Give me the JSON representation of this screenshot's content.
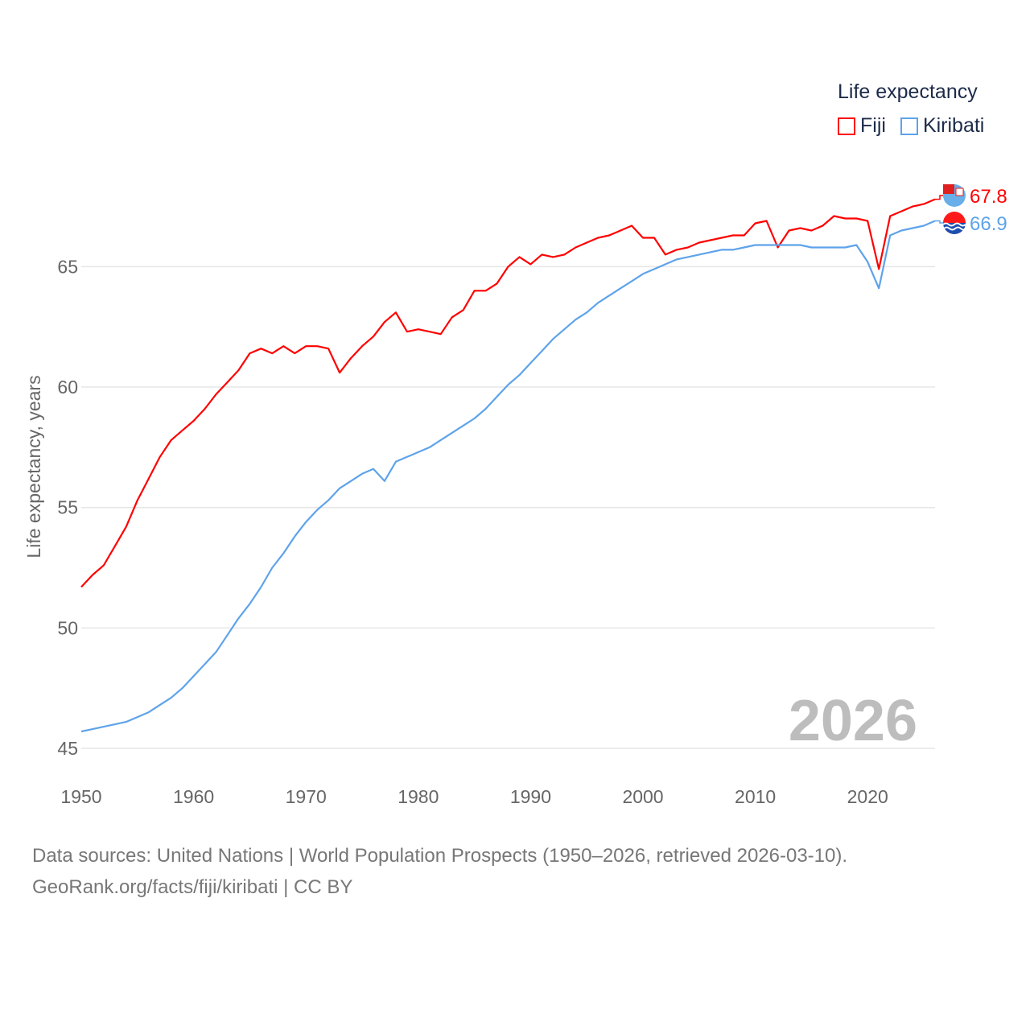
{
  "chart_data": {
    "type": "line",
    "title": "",
    "xlabel": "",
    "ylabel": "Life expectancy, years",
    "xlim": [
      1950,
      2026
    ],
    "ylim": [
      45,
      68.5
    ],
    "grid": true,
    "x_ticks": [
      "1950",
      "1960",
      "1970",
      "1980",
      "1990",
      "2000",
      "2010",
      "2020"
    ],
    "y_ticks": [
      "45",
      "50",
      "55",
      "60",
      "65"
    ],
    "legend": {
      "title": "Life expectancy",
      "placement": "top-right"
    },
    "year_label": "2026",
    "x": [
      1950,
      1951,
      1952,
      1953,
      1954,
      1955,
      1956,
      1957,
      1958,
      1959,
      1960,
      1961,
      1962,
      1963,
      1964,
      1965,
      1966,
      1967,
      1968,
      1969,
      1970,
      1971,
      1972,
      1973,
      1974,
      1975,
      1976,
      1977,
      1978,
      1979,
      1980,
      1981,
      1982,
      1983,
      1984,
      1985,
      1986,
      1987,
      1988,
      1989,
      1990,
      1991,
      1992,
      1993,
      1994,
      1995,
      1996,
      1997,
      1998,
      1999,
      2000,
      2001,
      2002,
      2003,
      2004,
      2005,
      2006,
      2007,
      2008,
      2009,
      2010,
      2011,
      2012,
      2013,
      2014,
      2015,
      2016,
      2017,
      2018,
      2019,
      2020,
      2021,
      2022,
      2023,
      2024,
      2025,
      2026
    ],
    "series": [
      {
        "name": "Fiji",
        "color": "#ff0000",
        "end_label": "67.8",
        "values": [
          51.7,
          52.2,
          52.6,
          53.4,
          54.2,
          55.3,
          56.2,
          57.1,
          57.8,
          58.2,
          58.6,
          59.1,
          59.7,
          60.2,
          60.7,
          61.4,
          61.6,
          61.4,
          61.7,
          61.4,
          61.7,
          61.7,
          61.6,
          60.6,
          61.2,
          61.7,
          62.1,
          62.7,
          63.1,
          62.3,
          62.4,
          62.3,
          62.2,
          62.9,
          63.2,
          64.0,
          64.0,
          64.3,
          65.0,
          65.4,
          65.1,
          65.5,
          65.4,
          65.5,
          65.8,
          66.0,
          66.2,
          66.3,
          66.5,
          66.7,
          66.2,
          66.2,
          65.5,
          65.7,
          65.8,
          66.0,
          66.1,
          66.2,
          66.3,
          66.3,
          66.8,
          66.9,
          65.8,
          66.5,
          66.6,
          66.5,
          66.7,
          67.1,
          67.0,
          67.0,
          66.9,
          64.9,
          67.1,
          67.3,
          67.5,
          67.6,
          67.8
        ]
      },
      {
        "name": "Kiribati",
        "color": "#5ea3ea",
        "end_label": "66.9",
        "values": [
          45.7,
          45.8,
          45.9,
          46.0,
          46.1,
          46.3,
          46.5,
          46.8,
          47.1,
          47.5,
          48.0,
          48.5,
          49.0,
          49.7,
          50.4,
          51.0,
          51.7,
          52.5,
          53.1,
          53.8,
          54.4,
          54.9,
          55.3,
          55.8,
          56.1,
          56.4,
          56.6,
          56.1,
          56.9,
          57.1,
          57.3,
          57.5,
          57.8,
          58.1,
          58.4,
          58.7,
          59.1,
          59.6,
          60.1,
          60.5,
          61.0,
          61.5,
          62.0,
          62.4,
          62.8,
          63.1,
          63.5,
          63.8,
          64.1,
          64.4,
          64.7,
          64.9,
          65.1,
          65.3,
          65.4,
          65.5,
          65.6,
          65.7,
          65.7,
          65.8,
          65.9,
          65.9,
          65.9,
          65.9,
          65.9,
          65.8,
          65.8,
          65.8,
          65.8,
          65.9,
          65.2,
          64.1,
          66.3,
          66.5,
          66.6,
          66.7,
          66.9
        ]
      }
    ]
  },
  "source_line1": "Data sources: United Nations | World Population Prospects (1950–2026, retrieved 2026-03-10).",
  "source_line2": "GeoRank.org/facts/fiji/kiribati | CC BY"
}
